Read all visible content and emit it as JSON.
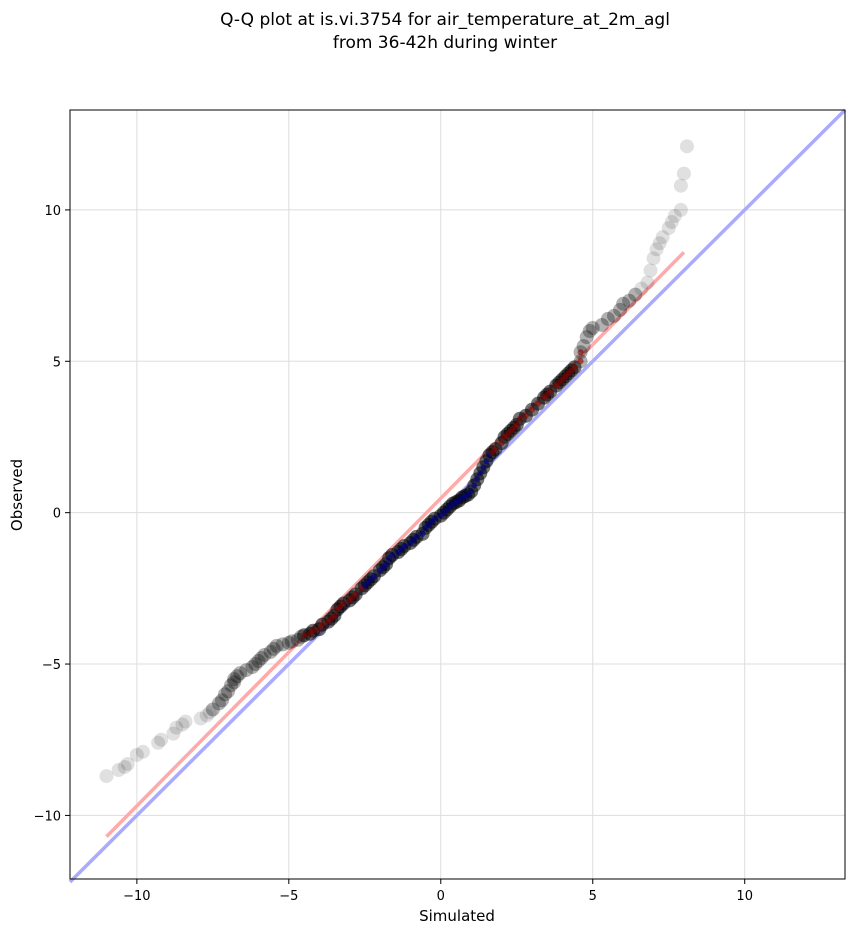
{
  "chart_data": {
    "type": "scatter",
    "title_lines": [
      "Q-Q plot at is.vi.3754 for air_temperature_at_2m_agl",
      "from 36-42h during winter"
    ],
    "xlabel": "Simulated",
    "ylabel": "Observed",
    "xlim": [
      -12.2,
      13.3
    ],
    "ylim": [
      -12.1,
      13.3
    ],
    "xticks": [
      -10,
      -5,
      0,
      5,
      10
    ],
    "yticks": [
      -10,
      -5,
      0,
      5,
      10
    ],
    "xtick_labels": [
      "−10",
      "−5",
      "0",
      "5",
      "10"
    ],
    "ytick_labels": [
      "−10",
      "−5",
      "0",
      "5",
      "10"
    ],
    "grid": true,
    "colors": {
      "points": "#000000",
      "points_highlight_red": "#8b0000",
      "points_highlight_blue": "#00008b",
      "reference_line": "#aaaaff",
      "fit_line": "#ffaaaa"
    },
    "lines": {
      "identity": {
        "x": [
          -12.2,
          13.3
        ],
        "y": [
          -12.2,
          13.3
        ]
      },
      "fit": {
        "x": [
          -11.0,
          8.0
        ],
        "y": [
          -10.7,
          8.6
        ]
      }
    },
    "points": [
      [
        -11.0,
        -8.7
      ],
      [
        -10.6,
        -8.5
      ],
      [
        -10.4,
        -8.4
      ],
      [
        -10.3,
        -8.3
      ],
      [
        -10.0,
        -8.0
      ],
      [
        -9.8,
        -7.9
      ],
      [
        -9.3,
        -7.6
      ],
      [
        -9.2,
        -7.5
      ],
      [
        -8.8,
        -7.3
      ],
      [
        -8.7,
        -7.1
      ],
      [
        -8.5,
        -7.0
      ],
      [
        -8.4,
        -6.9
      ],
      [
        -7.9,
        -6.8
      ],
      [
        -7.7,
        -6.7
      ],
      [
        -7.6,
        -6.6
      ],
      [
        -7.5,
        -6.5
      ],
      [
        -7.3,
        -6.3
      ],
      [
        -7.2,
        -6.2
      ],
      [
        -7.1,
        -6.0
      ],
      [
        -7.0,
        -5.9
      ],
      [
        -6.9,
        -5.7
      ],
      [
        -6.8,
        -5.6
      ],
      [
        -6.8,
        -5.5
      ],
      [
        -6.7,
        -5.4
      ],
      [
        -6.6,
        -5.3
      ],
      [
        -6.4,
        -5.2
      ],
      [
        -6.2,
        -5.1
      ],
      [
        -6.1,
        -5.0
      ],
      [
        -6.0,
        -4.9
      ],
      [
        -5.9,
        -4.8
      ],
      [
        -5.8,
        -4.7
      ],
      [
        -5.6,
        -4.6
      ],
      [
        -5.5,
        -4.5
      ],
      [
        -5.4,
        -4.4
      ],
      [
        -5.2,
        -4.35
      ],
      [
        -5.0,
        -4.3
      ],
      [
        -4.9,
        -4.25
      ],
      [
        -4.7,
        -4.2
      ],
      [
        -4.6,
        -4.1
      ],
      [
        -4.5,
        -4.05
      ],
      [
        -4.3,
        -4.0
      ],
      [
        -4.2,
        -3.9
      ],
      [
        -4.0,
        -3.85
      ],
      [
        -3.9,
        -3.7
      ],
      [
        -3.7,
        -3.6
      ],
      [
        -3.6,
        -3.5
      ],
      [
        -3.5,
        -3.4
      ],
      [
        -3.4,
        -3.2
      ],
      [
        -3.3,
        -3.1
      ],
      [
        -3.2,
        -3.0
      ],
      [
        -3.0,
        -2.9
      ],
      [
        -2.9,
        -2.8
      ],
      [
        -2.8,
        -2.7
      ],
      [
        -2.6,
        -2.5
      ],
      [
        -2.5,
        -2.4
      ],
      [
        -2.4,
        -2.3
      ],
      [
        -2.3,
        -2.2
      ],
      [
        -2.2,
        -2.1
      ],
      [
        -2.0,
        -1.9
      ],
      [
        -1.9,
        -1.8
      ],
      [
        -1.8,
        -1.7
      ],
      [
        -1.7,
        -1.5
      ],
      [
        -1.6,
        -1.4
      ],
      [
        -1.4,
        -1.3
      ],
      [
        -1.3,
        -1.2
      ],
      [
        -1.2,
        -1.1
      ],
      [
        -1.0,
        -1.0
      ],
      [
        -0.9,
        -0.9
      ],
      [
        -0.8,
        -0.8
      ],
      [
        -0.6,
        -0.7
      ],
      [
        -0.5,
        -0.5
      ],
      [
        -0.4,
        -0.4
      ],
      [
        -0.3,
        -0.3
      ],
      [
        -0.2,
        -0.2
      ],
      [
        0.0,
        -0.1
      ],
      [
        0.1,
        0.0
      ],
      [
        0.2,
        0.1
      ],
      [
        0.3,
        0.2
      ],
      [
        0.4,
        0.3
      ],
      [
        0.5,
        0.35
      ],
      [
        0.6,
        0.4
      ],
      [
        0.7,
        0.5
      ],
      [
        0.8,
        0.55
      ],
      [
        0.9,
        0.6
      ],
      [
        1.0,
        0.7
      ],
      [
        1.1,
        0.9
      ],
      [
        1.2,
        1.1
      ],
      [
        1.3,
        1.3
      ],
      [
        1.4,
        1.5
      ],
      [
        1.5,
        1.7
      ],
      [
        1.6,
        1.9
      ],
      [
        1.7,
        2.0
      ],
      [
        1.8,
        2.1
      ],
      [
        2.0,
        2.3
      ],
      [
        2.1,
        2.5
      ],
      [
        2.2,
        2.6
      ],
      [
        2.3,
        2.7
      ],
      [
        2.4,
        2.8
      ],
      [
        2.5,
        2.9
      ],
      [
        2.6,
        3.1
      ],
      [
        2.8,
        3.2
      ],
      [
        3.0,
        3.4
      ],
      [
        3.2,
        3.6
      ],
      [
        3.4,
        3.8
      ],
      [
        3.5,
        3.9
      ],
      [
        3.6,
        4.0
      ],
      [
        3.8,
        4.2
      ],
      [
        3.9,
        4.3
      ],
      [
        4.0,
        4.4
      ],
      [
        4.1,
        4.5
      ],
      [
        4.2,
        4.6
      ],
      [
        4.3,
        4.7
      ],
      [
        4.4,
        4.8
      ],
      [
        4.6,
        5.0
      ],
      [
        4.6,
        5.3
      ],
      [
        4.7,
        5.5
      ],
      [
        4.8,
        5.8
      ],
      [
        4.9,
        6.0
      ],
      [
        5.0,
        6.1
      ],
      [
        5.3,
        6.2
      ],
      [
        5.5,
        6.4
      ],
      [
        5.7,
        6.5
      ],
      [
        5.9,
        6.7
      ],
      [
        6.0,
        6.9
      ],
      [
        6.2,
        7.0
      ],
      [
        6.4,
        7.2
      ],
      [
        6.6,
        7.4
      ],
      [
        6.8,
        7.6
      ],
      [
        6.9,
        8.0
      ],
      [
        7.0,
        8.4
      ],
      [
        7.1,
        8.7
      ],
      [
        7.2,
        8.9
      ],
      [
        7.3,
        9.1
      ],
      [
        7.5,
        9.4
      ],
      [
        7.6,
        9.6
      ],
      [
        7.7,
        9.8
      ],
      [
        7.9,
        10.0
      ],
      [
        7.9,
        10.8
      ],
      [
        8.0,
        11.2
      ],
      [
        8.1,
        12.1
      ]
    ]
  }
}
